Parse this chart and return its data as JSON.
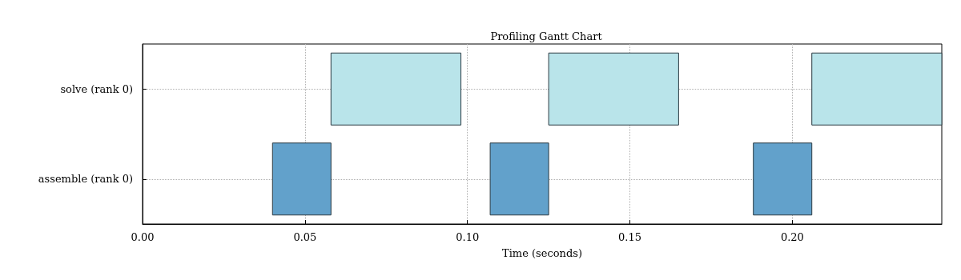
{
  "chart_data": {
    "type": "bar",
    "orientation": "horizontal",
    "title": "Profiling Gantt Chart",
    "xlabel": "Time (seconds)",
    "categories": [
      "solve (rank 0)",
      "assemble (rank 0)"
    ],
    "series": [
      {
        "values": [
          0.04,
          0.018
        ],
        "base": [
          0.058,
          0.04
        ],
        "colors": [
          "#b9e4ea",
          "#62a1cb"
        ]
      },
      {
        "values": [
          0.04,
          0.018
        ],
        "base": [
          0.125,
          0.107
        ],
        "colors": [
          "#b9e4ea",
          "#62a1cb"
        ]
      },
      {
        "values": [
          0.04,
          0.018
        ],
        "base": [
          0.206,
          0.188
        ],
        "colors": [
          "#b9e4ea",
          "#62a1cb"
        ]
      }
    ],
    "xlim": [
      0,
      0.246
    ],
    "xticks": [
      {
        "value": 0,
        "label": "0.00"
      },
      0.05,
      {
        "value": 0.1,
        "label": "0.10"
      },
      0.15,
      {
        "value": 0.2,
        "label": "0.20"
      }
    ],
    "grid": true
  }
}
